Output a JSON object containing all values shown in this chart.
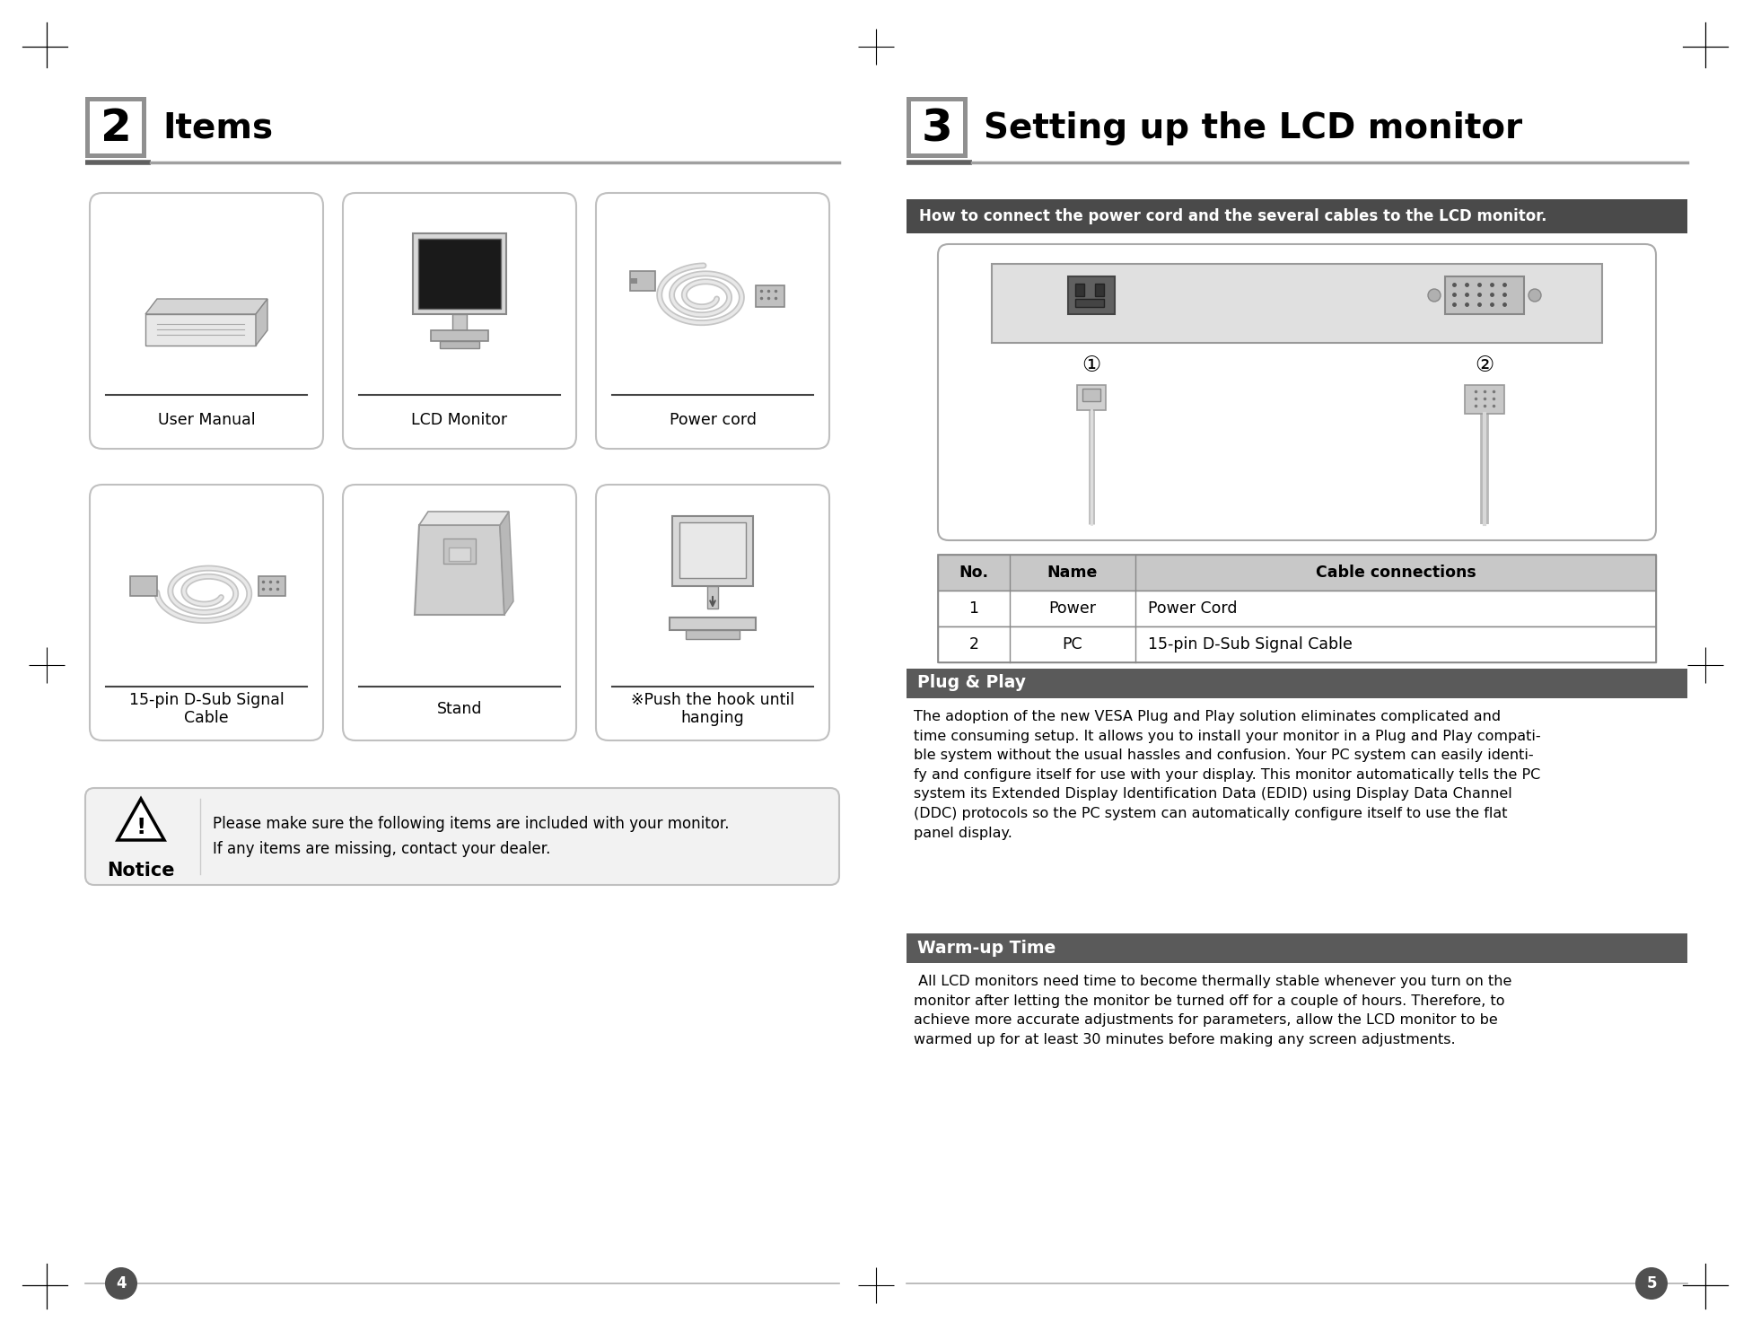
{
  "bg_color": "#ffffff",
  "page_width": 19.52,
  "page_height": 14.83,
  "section2_title": "Items",
  "section2_num": "2",
  "section3_title": "Setting up the LCD monitor",
  "section3_num": "3",
  "items_row1": [
    "User Manual",
    "LCD Monitor",
    "Power cord"
  ],
  "items_row2": [
    "15-pin D-Sub Signal\nCable",
    "Stand",
    "※Push the hook until\nhanging"
  ],
  "notice_title": "Notice",
  "notice_line1": "Please make sure the following items are included with your monitor.",
  "notice_line2": "If any items are missing, contact your dealer.",
  "how_to_label": "How to connect the power cord and the several cables to the LCD monitor.",
  "table_headers": [
    "No.",
    "Name",
    "Cable connections"
  ],
  "table_row1": [
    "1",
    "Power",
    "Power Cord"
  ],
  "table_row2": [
    "2",
    "PC",
    "15-pin D-Sub Signal Cable"
  ],
  "plug_play_title": "Plug & Play",
  "plug_play_text": "The adoption of the new VESA Plug and Play solution eliminates complicated and\ntime consuming setup. It allows you to install your monitor in a Plug and Play compati-\nble system without the usual hassles and confusion. Your PC system can easily identi-\nfy and configure itself for use with your display. This monitor automatically tells the PC\nsystem its Extended Display Identification Data (EDID) using Display Data Channel\n(DDC) protocols so the PC system can automatically configure itself to use the flat\npanel display.",
  "warmup_title": "Warm-up Time",
  "warmup_text": " All LCD monitors need time to become thermally stable whenever you turn on the\nmonitor after letting the monitor be turned off for a couple of hours. Therefore, to\nachieve more accurate adjustments for parameters, allow the LCD monitor to be\nwarmed up for at least 30 minutes before making any screen adjustments.",
  "page_num_left": "4",
  "page_num_right": "5"
}
